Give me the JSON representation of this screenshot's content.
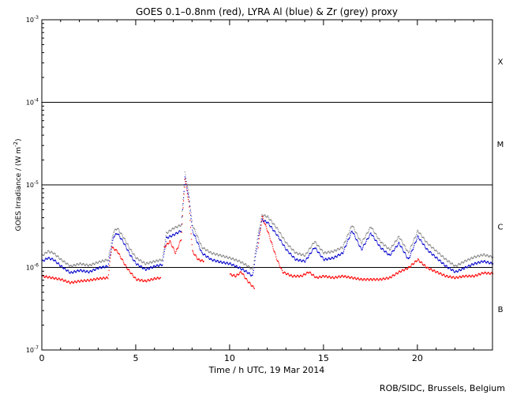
{
  "chart_data": {
    "type": "scatter",
    "title": "GOES 0.1–0.8nm (red), LYRA Al (blue) & Zr (grey) proxy",
    "xlabel": "Time / h UTC, 19 Mar 2014",
    "ylabel": "GOES Irradiance / (W m",
    "ylabel_sup": "-2",
    "ylabel_close": ")",
    "xlim": [
      0,
      24
    ],
    "ylim_log10": [
      -7,
      -3
    ],
    "y_scale": "log",
    "x_ticks": [
      "0",
      "5",
      "10",
      "15",
      "20"
    ],
    "y_ticks": [
      {
        "base": "10",
        "exp": "-7"
      },
      {
        "base": "10",
        "exp": "-6"
      },
      {
        "base": "10",
        "exp": "-5"
      },
      {
        "base": "10",
        "exp": "-4"
      },
      {
        "base": "10",
        "exp": "-3"
      }
    ],
    "flare_classes": [
      "B",
      "C",
      "M",
      "X"
    ],
    "class_lines_log10": [
      -6,
      -5,
      -4
    ],
    "credit": "ROB/SIDC, Brussels, Belgium",
    "series": [
      {
        "name": "GOES 0.1–0.8nm",
        "color": "#ff0000",
        "segments": [
          [
            [
              0,
              -6.1
            ],
            [
              0.5,
              -6.12
            ],
            [
              1,
              -6.14
            ],
            [
              1.5,
              -6.18
            ],
            [
              2,
              -6.16
            ],
            [
              2.5,
              -6.15
            ],
            [
              3,
              -6.13
            ],
            [
              3.5,
              -6.12
            ],
            [
              3.7,
              -5.75
            ],
            [
              4.0,
              -5.8
            ],
            [
              4.5,
              -6.0
            ],
            [
              5.0,
              -6.14
            ],
            [
              5.5,
              -6.16
            ],
            [
              6.0,
              -6.13
            ],
            [
              6.3,
              -6.12
            ]
          ],
          [
            [
              6.5,
              -5.75
            ],
            [
              6.8,
              -5.68
            ],
            [
              7.1,
              -5.82
            ],
            [
              7.4,
              -5.65
            ],
            [
              7.6,
              -4.92
            ],
            [
              7.8,
              -5.2
            ],
            [
              8.0,
              -5.8
            ],
            [
              8.3,
              -5.9
            ],
            [
              8.6,
              -5.92
            ]
          ],
          [
            [
              10.0,
              -6.08
            ],
            [
              10.3,
              -6.1
            ],
            [
              10.6,
              -6.05
            ],
            [
              10.9,
              -6.15
            ],
            [
              11.1,
              -6.2
            ],
            [
              11.3,
              -6.25
            ]
          ],
          [
            [
              11.5,
              -5.75
            ],
            [
              11.7,
              -5.38
            ],
            [
              12.0,
              -5.55
            ],
            [
              12.5,
              -5.9
            ],
            [
              12.8,
              -6.05
            ],
            [
              13.3,
              -6.1
            ],
            [
              13.8,
              -6.1
            ],
            [
              14.2,
              -6.05
            ],
            [
              14.6,
              -6.12
            ],
            [
              15.0,
              -6.1
            ],
            [
              15.5,
              -6.12
            ],
            [
              16.0,
              -6.1
            ],
            [
              16.5,
              -6.12
            ],
            [
              17.0,
              -6.14
            ],
            [
              17.5,
              -6.14
            ],
            [
              18.0,
              -6.14
            ],
            [
              18.5,
              -6.12
            ],
            [
              19.0,
              -6.05
            ],
            [
              19.5,
              -6.0
            ],
            [
              20.0,
              -5.9
            ],
            [
              20.5,
              -6.0
            ],
            [
              21.0,
              -6.05
            ],
            [
              21.5,
              -6.1
            ],
            [
              22.0,
              -6.12
            ],
            [
              22.5,
              -6.1
            ],
            [
              23.0,
              -6.1
            ],
            [
              23.5,
              -6.06
            ],
            [
              24.0,
              -6.07
            ]
          ]
        ]
      },
      {
        "name": "LYRA Al",
        "color": "#0000cc",
        "segments": [
          [
            [
              0,
              -5.92
            ],
            [
              0.3,
              -5.88
            ],
            [
              0.6,
              -5.9
            ],
            [
              1.0,
              -5.98
            ],
            [
              1.5,
              -6.06
            ],
            [
              2.0,
              -6.03
            ],
            [
              2.5,
              -6.05
            ],
            [
              3.0,
              -6.0
            ],
            [
              3.5,
              -5.98
            ],
            [
              3.8,
              -5.62
            ],
            [
              4.0,
              -5.58
            ],
            [
              4.3,
              -5.68
            ],
            [
              4.7,
              -5.85
            ],
            [
              5.0,
              -5.95
            ],
            [
              5.5,
              -6.02
            ],
            [
              6.0,
              -5.98
            ],
            [
              6.4,
              -5.96
            ],
            [
              6.6,
              -5.64
            ],
            [
              7.0,
              -5.6
            ],
            [
              7.4,
              -5.55
            ],
            [
              7.6,
              -4.9
            ],
            [
              7.8,
              -5.15
            ],
            [
              8.0,
              -5.55
            ],
            [
              8.5,
              -5.82
            ],
            [
              9.0,
              -5.9
            ],
            [
              9.5,
              -5.93
            ],
            [
              10.0,
              -5.95
            ],
            [
              10.5,
              -6.0
            ],
            [
              10.9,
              -6.05
            ],
            [
              11.2,
              -6.1
            ],
            [
              11.5,
              -5.65
            ],
            [
              11.7,
              -5.42
            ],
            [
              12.0,
              -5.45
            ],
            [
              12.5,
              -5.6
            ],
            [
              13.0,
              -5.78
            ],
            [
              13.5,
              -5.9
            ],
            [
              14.0,
              -5.92
            ],
            [
              14.5,
              -5.75
            ],
            [
              15.0,
              -5.9
            ],
            [
              15.5,
              -5.88
            ],
            [
              16.0,
              -5.82
            ],
            [
              16.5,
              -5.55
            ],
            [
              17.0,
              -5.78
            ],
            [
              17.5,
              -5.58
            ],
            [
              18.0,
              -5.75
            ],
            [
              18.5,
              -5.85
            ],
            [
              19.0,
              -5.7
            ],
            [
              19.5,
              -5.9
            ],
            [
              20.0,
              -5.62
            ],
            [
              20.5,
              -5.78
            ],
            [
              21.0,
              -5.88
            ],
            [
              21.5,
              -5.98
            ],
            [
              22.0,
              -6.05
            ],
            [
              22.5,
              -6.0
            ],
            [
              23.0,
              -5.95
            ],
            [
              23.5,
              -5.92
            ],
            [
              24.0,
              -5.95
            ]
          ]
        ]
      },
      {
        "name": "Zr",
        "color": "#888888",
        "segments": [
          [
            [
              0,
              -5.85
            ],
            [
              0.3,
              -5.8
            ],
            [
              0.6,
              -5.82
            ],
            [
              1.0,
              -5.9
            ],
            [
              1.5,
              -5.98
            ],
            [
              2.0,
              -5.95
            ],
            [
              2.5,
              -5.97
            ],
            [
              3.0,
              -5.93
            ],
            [
              3.5,
              -5.9
            ],
            [
              3.8,
              -5.56
            ],
            [
              4.0,
              -5.52
            ],
            [
              4.3,
              -5.62
            ],
            [
              4.7,
              -5.78
            ],
            [
              5.0,
              -5.88
            ],
            [
              5.5,
              -5.95
            ],
            [
              6.0,
              -5.92
            ],
            [
              6.4,
              -5.9
            ],
            [
              6.6,
              -5.58
            ],
            [
              7.0,
              -5.52
            ],
            [
              7.4,
              -5.48
            ],
            [
              7.6,
              -4.85
            ],
            [
              7.8,
              -5.1
            ],
            [
              8.0,
              -5.48
            ],
            [
              8.5,
              -5.75
            ],
            [
              9.0,
              -5.82
            ],
            [
              9.5,
              -5.85
            ],
            [
              10.0,
              -5.88
            ],
            [
              10.5,
              -5.92
            ],
            [
              10.9,
              -5.97
            ],
            [
              11.2,
              -6.02
            ],
            [
              11.5,
              -5.58
            ],
            [
              11.7,
              -5.36
            ],
            [
              12.0,
              -5.38
            ],
            [
              12.5,
              -5.52
            ],
            [
              13.0,
              -5.7
            ],
            [
              13.5,
              -5.82
            ],
            [
              14.0,
              -5.85
            ],
            [
              14.5,
              -5.68
            ],
            [
              15.0,
              -5.82
            ],
            [
              15.5,
              -5.8
            ],
            [
              16.0,
              -5.75
            ],
            [
              16.5,
              -5.48
            ],
            [
              17.0,
              -5.7
            ],
            [
              17.5,
              -5.5
            ],
            [
              18.0,
              -5.68
            ],
            [
              18.5,
              -5.78
            ],
            [
              19.0,
              -5.62
            ],
            [
              19.5,
              -5.82
            ],
            [
              20.0,
              -5.55
            ],
            [
              20.5,
              -5.7
            ],
            [
              21.0,
              -5.8
            ],
            [
              21.5,
              -5.9
            ],
            [
              22.0,
              -5.98
            ],
            [
              22.5,
              -5.92
            ],
            [
              23.0,
              -5.87
            ],
            [
              23.5,
              -5.84
            ],
            [
              24.0,
              -5.87
            ]
          ]
        ]
      }
    ]
  }
}
